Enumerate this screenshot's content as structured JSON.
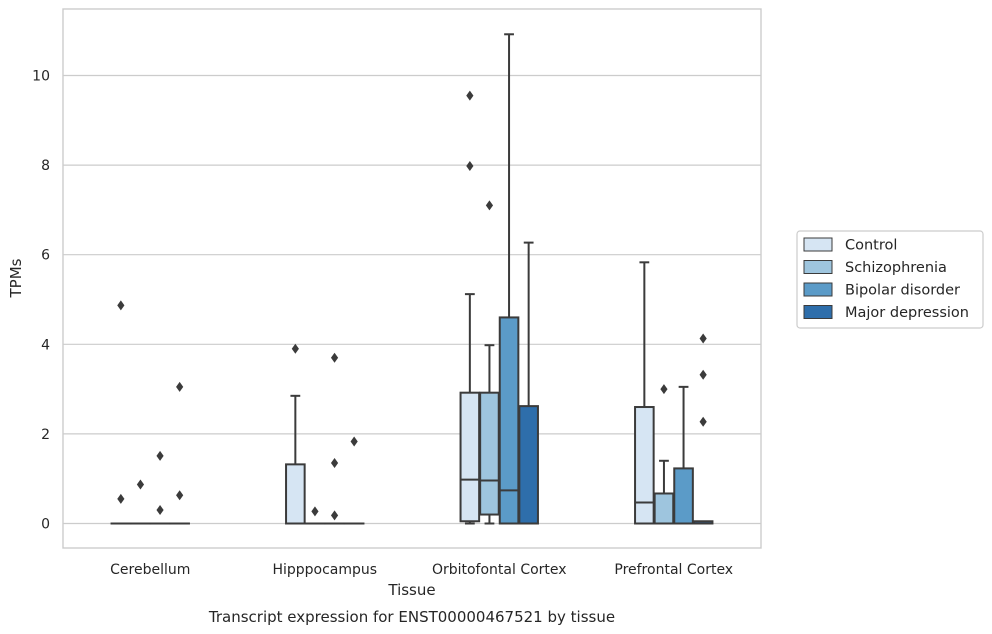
{
  "chart_data": {
    "type": "boxplot",
    "title": "Transcript expression for ENST00000467521 by tissue",
    "xlabel": "Tissue",
    "ylabel": "TPMs",
    "ylim": [
      -0.5,
      11.5
    ],
    "yticks": [
      0,
      2,
      4,
      6,
      8,
      10
    ],
    "grid": "horizontal",
    "legend_position": "right",
    "categories": [
      "Cerebellum",
      "Hipppocampus",
      "Orbitofontal Cortex",
      "Prefrontal Cortex"
    ],
    "series": [
      {
        "name": "Control",
        "color": "#d6e5f3",
        "boxes": [
          {
            "q1": 0,
            "median": 0,
            "q3": 0,
            "whisker_low": 0,
            "whisker_high": 0,
            "outliers": [
              4.87,
              0.55
            ]
          },
          {
            "q1": 0,
            "median": 0,
            "q3": 1.32,
            "whisker_low": 0,
            "whisker_high": 2.85,
            "outliers": [
              3.9
            ]
          },
          {
            "q1": 0.05,
            "median": 0.98,
            "q3": 2.92,
            "whisker_low": 0,
            "whisker_high": 5.12,
            "outliers": [
              9.55,
              7.98
            ]
          },
          {
            "q1": 0,
            "median": 0.47,
            "q3": 2.6,
            "whisker_low": 0,
            "whisker_high": 5.83,
            "outliers": []
          }
        ]
      },
      {
        "name": "Schizophrenia",
        "color": "#9ec5de",
        "boxes": [
          {
            "q1": 0,
            "median": 0,
            "q3": 0,
            "whisker_low": 0,
            "whisker_high": 0,
            "outliers": [
              0.87
            ]
          },
          {
            "q1": 0,
            "median": 0,
            "q3": 0,
            "whisker_low": 0,
            "whisker_high": 0,
            "outliers": [
              0.27
            ]
          },
          {
            "q1": 0.2,
            "median": 0.96,
            "q3": 2.92,
            "whisker_low": 0,
            "whisker_high": 3.98,
            "outliers": [
              7.1
            ]
          },
          {
            "q1": 0,
            "median": 0,
            "q3": 0.67,
            "whisker_low": 0,
            "whisker_high": 1.4,
            "outliers": [
              3.0
            ]
          }
        ]
      },
      {
        "name": "Bipolar disorder",
        "color": "#5b9bc8",
        "boxes": [
          {
            "q1": 0,
            "median": 0,
            "q3": 0,
            "whisker_low": 0,
            "whisker_high": 0,
            "outliers": [
              1.51,
              0.3
            ]
          },
          {
            "q1": 0,
            "median": 0,
            "q3": 0,
            "whisker_low": 0,
            "whisker_high": 0,
            "outliers": [
              3.7,
              1.35,
              0.18
            ]
          },
          {
            "q1": 0,
            "median": 0.74,
            "q3": 4.6,
            "whisker_low": 0,
            "whisker_high": 10.92,
            "outliers": []
          },
          {
            "q1": 0,
            "median": 0,
            "q3": 1.23,
            "whisker_low": 0,
            "whisker_high": 3.05,
            "outliers": []
          }
        ]
      },
      {
        "name": "Major depression",
        "color": "#2e6eab",
        "boxes": [
          {
            "q1": 0,
            "median": 0,
            "q3": 0,
            "whisker_low": 0,
            "whisker_high": 0,
            "outliers": [
              3.05,
              0.63
            ]
          },
          {
            "q1": 0,
            "median": 0,
            "q3": 0,
            "whisker_low": 0,
            "whisker_high": 0,
            "outliers": [
              1.83
            ]
          },
          {
            "q1": 0,
            "median": 0,
            "q3": 2.62,
            "whisker_low": 0,
            "whisker_high": 6.27,
            "outliers": []
          },
          {
            "q1": 0,
            "median": 0,
            "q3": 0.05,
            "whisker_low": 0,
            "whisker_high": 0.05,
            "outliers": [
              4.13,
              3.32,
              2.27
            ]
          }
        ]
      }
    ]
  }
}
